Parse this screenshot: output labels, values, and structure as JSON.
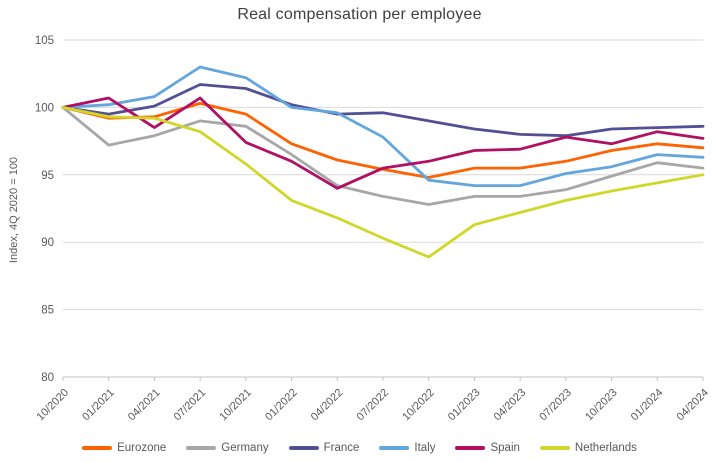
{
  "chart_data": {
    "type": "line",
    "title": "Real compensation per employee",
    "ylabel": "Index, 4Q 2020 = 100",
    "xlabel": "",
    "ylim": [
      80,
      105
    ],
    "yticks": [
      80,
      85,
      90,
      95,
      100,
      105
    ],
    "grid": true,
    "legend_position": "bottom",
    "categories": [
      "10/2020",
      "01/2021",
      "04/2021",
      "07/2021",
      "10/2021",
      "01/2022",
      "04/2022",
      "07/2022",
      "10/2022",
      "01/2023",
      "04/2023",
      "07/2023",
      "10/2023",
      "01/2024",
      "04/2024"
    ],
    "series": [
      {
        "name": "Eurozone",
        "color": "#ff6200",
        "values": [
          100,
          99.2,
          99.3,
          100.3,
          99.5,
          97.3,
          96.1,
          95.4,
          94.8,
          95.5,
          95.5,
          96.0,
          96.8,
          97.3,
          97.0
        ]
      },
      {
        "name": "Germany",
        "color": "#a7a7a7",
        "values": [
          100,
          97.2,
          97.9,
          99.0,
          98.6,
          96.5,
          94.2,
          93.4,
          92.8,
          93.4,
          93.4,
          93.9,
          94.9,
          95.9,
          95.5
        ]
      },
      {
        "name": "France",
        "color": "#524f94",
        "values": [
          100,
          99.5,
          100.1,
          101.7,
          101.4,
          100.2,
          99.5,
          99.6,
          99.0,
          98.4,
          98.0,
          97.9,
          98.4,
          98.5,
          98.6
        ]
      },
      {
        "name": "Italy",
        "color": "#63a6de",
        "values": [
          100,
          100.2,
          100.8,
          103.0,
          102.2,
          100.0,
          99.6,
          97.8,
          94.6,
          94.2,
          94.2,
          95.1,
          95.6,
          96.5,
          96.3
        ]
      },
      {
        "name": "Spain",
        "color": "#b00f64",
        "values": [
          100,
          100.7,
          98.5,
          100.7,
          97.4,
          96.0,
          94.0,
          95.5,
          96.0,
          96.8,
          96.9,
          97.8,
          97.3,
          98.2,
          97.7
        ]
      },
      {
        "name": "Netherlands",
        "color": "#d1d729",
        "values": [
          100,
          99.3,
          99.2,
          98.2,
          95.8,
          93.1,
          91.8,
          90.3,
          88.9,
          91.3,
          92.2,
          93.1,
          93.8,
          94.4,
          95.0
        ]
      }
    ]
  },
  "colors": {
    "title_text": "#404040",
    "axis_text": "#595959",
    "gridline": "#d9d9d9",
    "axis_line": "#c3c3c3",
    "background": "#ffffff"
  }
}
